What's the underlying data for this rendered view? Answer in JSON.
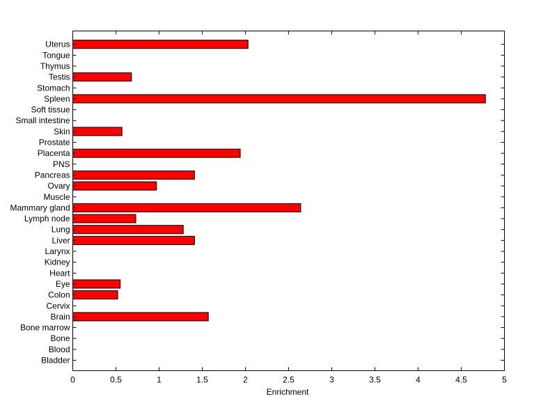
{
  "chart_data": {
    "type": "bar",
    "orientation": "horizontal",
    "xlabel": "Enrichment",
    "ylabel": "",
    "xlim": [
      0,
      5
    ],
    "xticks": [
      "0",
      "0.5",
      "1",
      "1.5",
      "2",
      "2.5",
      "3",
      "3.5",
      "4",
      "4.5",
      "5"
    ],
    "grid": false,
    "bar_color": "#ff0000",
    "bar_edge_color": "#000000",
    "categories": [
      "Bladder",
      "Blood",
      "Bone",
      "Bone marrow",
      "Brain",
      "Cervix",
      "Colon",
      "Eye",
      "Heart",
      "Kidney",
      "Larynx",
      "Liver",
      "Lung",
      "Lymph node",
      "Mammary gland",
      "Muscle",
      "Ovary",
      "Pancreas",
      "PNS",
      "Placenta",
      "Prostate",
      "Skin",
      "Small intestine",
      "Soft tissue",
      "Spleen",
      "Stomach",
      "Testis",
      "Thymus",
      "Tongue",
      "Uterus"
    ],
    "values": [
      0,
      0,
      0,
      0,
      1.57,
      0,
      0.52,
      0.55,
      0,
      0,
      0,
      1.41,
      1.28,
      0.73,
      2.64,
      0,
      0.97,
      1.41,
      0,
      1.94,
      0,
      0.57,
      0,
      0,
      4.78,
      0,
      0.68,
      0,
      0,
      2.03
    ]
  }
}
